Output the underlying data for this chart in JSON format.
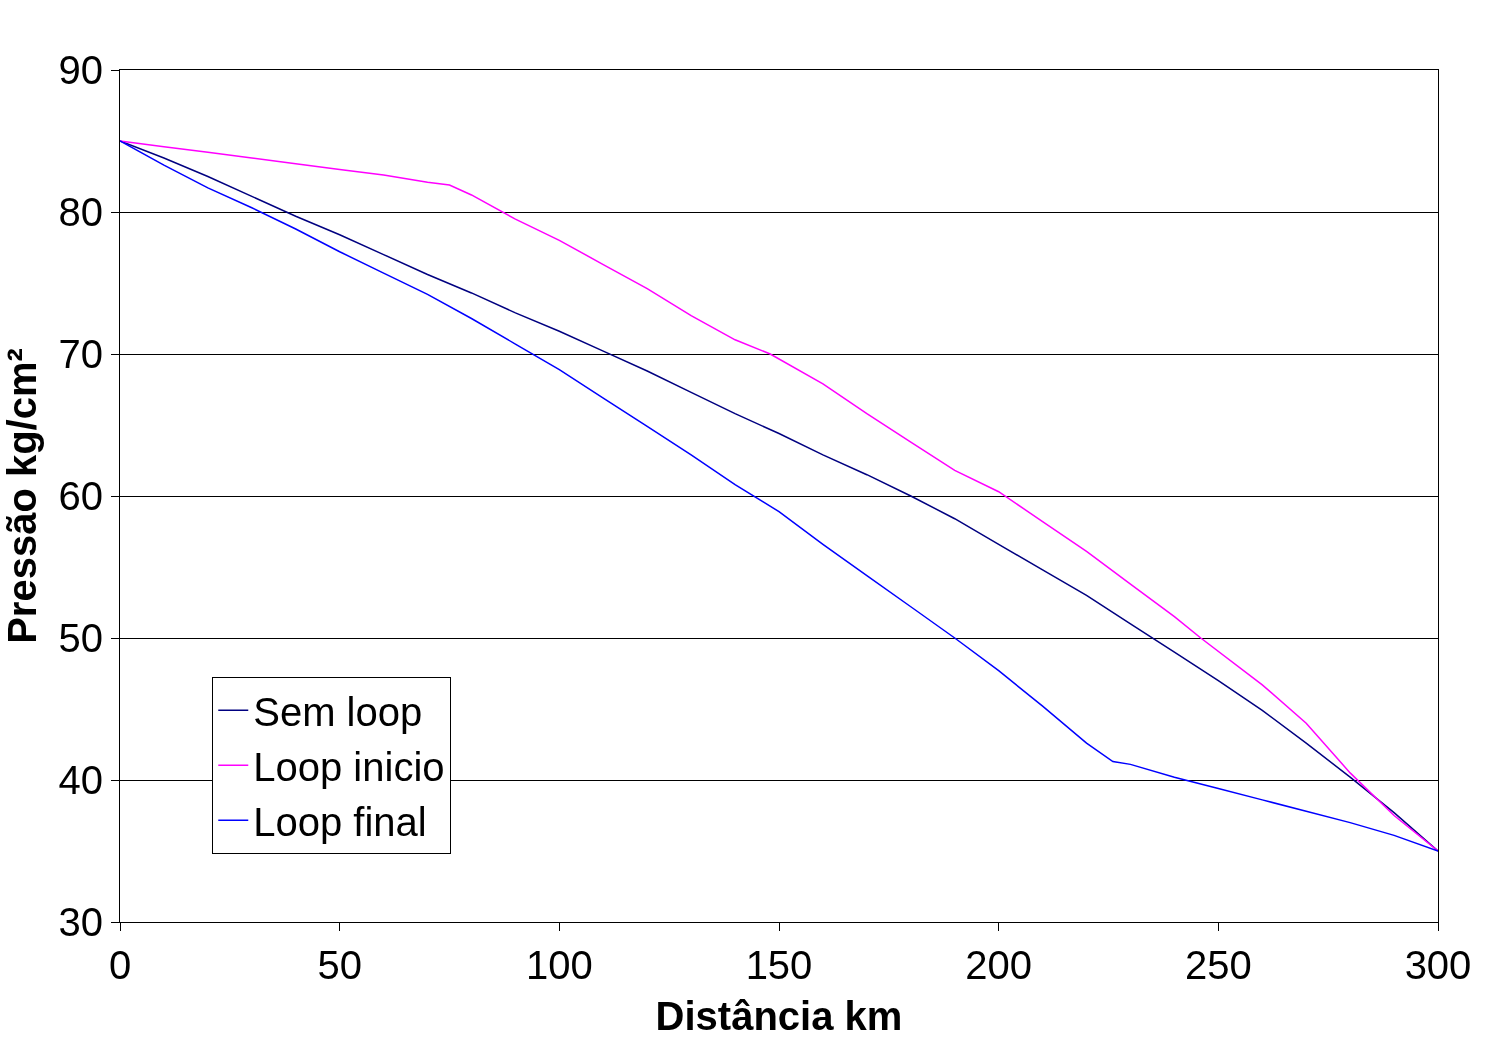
{
  "chart_data": {
    "type": "line",
    "xlabel": "Distância km",
    "ylabel": "Pressão kg/cm²",
    "xlim": [
      0,
      300
    ],
    "xticks": [
      0,
      50,
      100,
      150,
      200,
      250,
      300
    ],
    "ylim": [
      30,
      90
    ],
    "yticks": [
      30,
      40,
      50,
      60,
      70,
      80,
      90
    ],
    "grid": "y",
    "legend": "bottom left",
    "marker": "none",
    "line_style": "solid",
    "x": [
      0,
      10,
      20,
      30,
      40,
      50,
      60,
      70,
      80,
      90,
      100,
      110,
      120,
      130,
      140,
      150,
      160,
      170,
      180,
      190,
      200,
      210,
      220,
      230,
      240,
      250,
      260,
      270,
      280,
      290,
      300
    ],
    "series": [
      {
        "name": "Sem loop",
        "color": "#000080",
        "values": [
          85,
          83.8,
          82.5,
          81.1,
          79.7,
          78.4,
          77.0,
          75.6,
          74.3,
          72.9,
          71.6,
          70.2,
          68.8,
          67.3,
          65.8,
          64.4,
          62.9,
          61.5,
          60,
          58.4,
          56.6,
          54.8,
          53.0,
          51.0,
          49.0,
          47.0,
          44.9,
          42.6,
          40.2,
          37.7,
          35
        ]
      },
      {
        "name": "Loop inicio",
        "color": "#ff00ff",
        "x": [
          0,
          10,
          20,
          30,
          40,
          50,
          60,
          70,
          75,
          80,
          90,
          100,
          110,
          120,
          130,
          140,
          148,
          160,
          170,
          180,
          190,
          200,
          210,
          220,
          230,
          240,
          246,
          260,
          270,
          280,
          290,
          300
        ],
        "values": [
          85,
          84.6,
          84.2,
          83.8,
          83.4,
          83.0,
          82.6,
          82.1,
          81.9,
          81.2,
          79.5,
          78.0,
          76.3,
          74.6,
          72.7,
          71.0,
          70,
          67.9,
          65.8,
          63.8,
          61.8,
          60.3,
          58.2,
          56.1,
          53.8,
          51.5,
          50,
          46.7,
          44.0,
          40.5,
          37.5,
          35
        ]
      },
      {
        "name": "Loop final",
        "color": "#0000ff",
        "x": [
          0,
          10,
          20,
          30,
          40,
          50,
          60,
          70,
          80,
          90,
          100,
          110,
          120,
          130,
          140,
          150,
          160,
          170,
          180,
          190,
          200,
          210,
          220,
          226,
          230,
          240,
          250,
          260,
          270,
          280,
          290,
          300
        ],
        "values": [
          85,
          83.3,
          81.7,
          80.3,
          78.8,
          77.2,
          75.7,
          74.2,
          72.5,
          70.7,
          68.9,
          66.9,
          64.9,
          62.9,
          60.8,
          58.9,
          56.6,
          54.4,
          52.2,
          50,
          47.7,
          45.2,
          42.6,
          41.3,
          41.1,
          40.2,
          39.4,
          38.6,
          37.8,
          37.0,
          36.1,
          35
        ]
      }
    ]
  }
}
